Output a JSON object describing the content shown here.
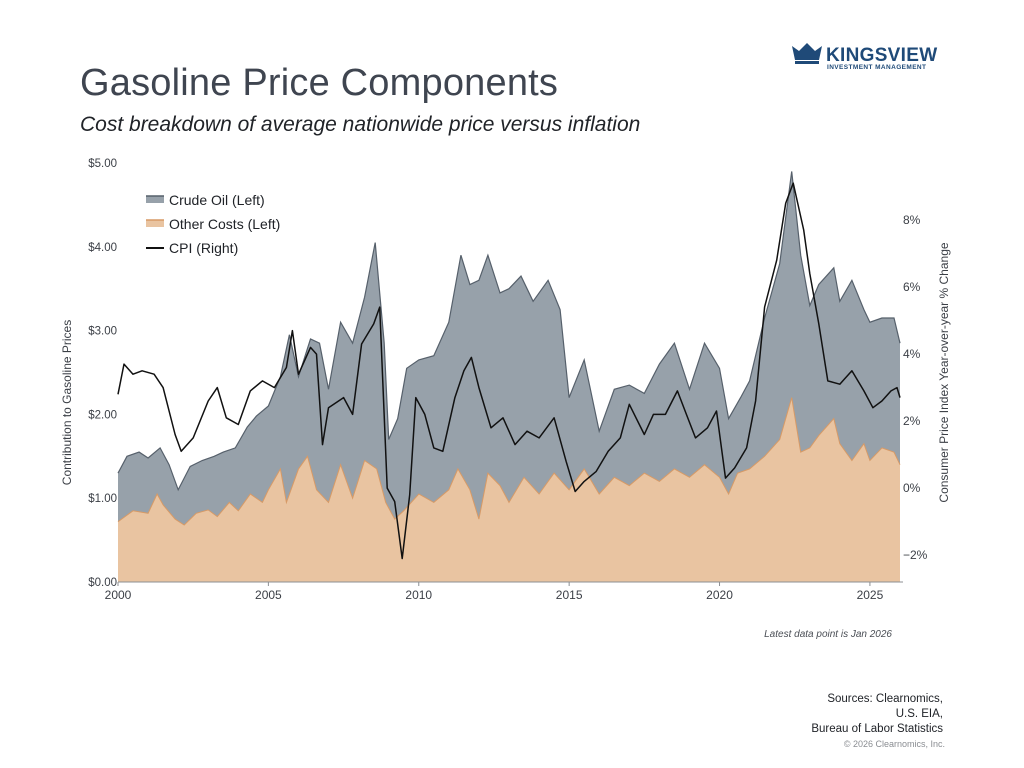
{
  "header": {
    "title": "Gasoline Price Components",
    "subtitle": "Cost breakdown of average nationwide price versus inflation"
  },
  "logo": {
    "name": "KINGSVIEW",
    "tagline": "INVESTMENT MANAGEMENT",
    "color": "#1f4a78"
  },
  "footer": {
    "latest_note": "Latest data point is Jan 2026",
    "sources_lines": [
      "Sources: Clearnomics,",
      "U.S. EIA,",
      "Bureau of Labor Statistics"
    ],
    "copyright": "© 2026 Clearnomics, Inc."
  },
  "colors": {
    "crude_fill": "#97a1aa",
    "crude_line": "#56606b",
    "other_fill": "#e9c4a1",
    "other_line": "#d79a66",
    "cpi_line": "#111111",
    "axis": "#8c8f93",
    "text": "#3b3f46"
  },
  "chart_data": {
    "type": "area",
    "x_type": "year",
    "xlim": [
      2000,
      2026.1
    ],
    "x_ticks": [
      2000,
      2005,
      2010,
      2015,
      2020,
      2025
    ],
    "x_tick_labels": [
      "2000",
      "2005",
      "2010",
      "2015",
      "2020",
      "2025"
    ],
    "left_axis": {
      "label": "Contribution to Gasoline Prices",
      "ylim": [
        0,
        5
      ],
      "ticks": [
        0,
        1,
        2,
        3,
        4,
        5
      ],
      "tick_labels": [
        "$0.00",
        "$1.00",
        "$2.00",
        "$3.00",
        "$4.00",
        "$5.00"
      ]
    },
    "right_axis": {
      "label": "Consumer Price Index Year-over-year % Change",
      "ylim": [
        -2.8,
        9.7
      ],
      "ticks": [
        -2,
        0,
        2,
        4,
        6,
        8
      ],
      "tick_labels": [
        "−2%",
        "0%",
        "2%",
        "4%",
        "6%",
        "8%"
      ]
    },
    "legend": {
      "position": "top-left",
      "entries": [
        "Crude Oil (Left)",
        "Other Costs (Left)",
        "CPI (Right)"
      ]
    },
    "grid": false,
    "series": [
      {
        "name": "Other Costs (Left)",
        "type": "area",
        "axis": "left",
        "stack_position": "bottom",
        "points": [
          [
            2000.0,
            0.72
          ],
          [
            2000.5,
            0.85
          ],
          [
            2001.0,
            0.82
          ],
          [
            2001.3,
            1.05
          ],
          [
            2001.5,
            0.92
          ],
          [
            2001.9,
            0.75
          ],
          [
            2002.2,
            0.68
          ],
          [
            2002.6,
            0.82
          ],
          [
            2003.0,
            0.86
          ],
          [
            2003.3,
            0.78
          ],
          [
            2003.7,
            0.95
          ],
          [
            2004.0,
            0.85
          ],
          [
            2004.4,
            1.05
          ],
          [
            2004.8,
            0.95
          ],
          [
            2005.0,
            1.1
          ],
          [
            2005.4,
            1.35
          ],
          [
            2005.6,
            0.95
          ],
          [
            2006.0,
            1.35
          ],
          [
            2006.3,
            1.5
          ],
          [
            2006.6,
            1.1
          ],
          [
            2007.0,
            0.95
          ],
          [
            2007.4,
            1.4
          ],
          [
            2007.8,
            1.0
          ],
          [
            2008.2,
            1.45
          ],
          [
            2008.6,
            1.35
          ],
          [
            2008.9,
            0.95
          ],
          [
            2009.2,
            0.75
          ],
          [
            2009.5,
            0.85
          ],
          [
            2010.0,
            1.05
          ],
          [
            2010.5,
            0.95
          ],
          [
            2011.0,
            1.1
          ],
          [
            2011.3,
            1.35
          ],
          [
            2011.7,
            1.1
          ],
          [
            2012.0,
            0.75
          ],
          [
            2012.3,
            1.3
          ],
          [
            2012.7,
            1.15
          ],
          [
            2013.0,
            0.95
          ],
          [
            2013.5,
            1.25
          ],
          [
            2014.0,
            1.05
          ],
          [
            2014.5,
            1.3
          ],
          [
            2015.0,
            1.1
          ],
          [
            2015.5,
            1.35
          ],
          [
            2016.0,
            1.05
          ],
          [
            2016.5,
            1.25
          ],
          [
            2017.0,
            1.15
          ],
          [
            2017.5,
            1.3
          ],
          [
            2018.0,
            1.2
          ],
          [
            2018.5,
            1.35
          ],
          [
            2019.0,
            1.25
          ],
          [
            2019.5,
            1.4
          ],
          [
            2020.0,
            1.25
          ],
          [
            2020.3,
            1.05
          ],
          [
            2020.6,
            1.3
          ],
          [
            2021.0,
            1.35
          ],
          [
            2021.5,
            1.5
          ],
          [
            2022.0,
            1.7
          ],
          [
            2022.4,
            2.2
          ],
          [
            2022.7,
            1.55
          ],
          [
            2023.0,
            1.6
          ],
          [
            2023.3,
            1.75
          ],
          [
            2023.8,
            1.95
          ],
          [
            2024.0,
            1.65
          ],
          [
            2024.4,
            1.45
          ],
          [
            2024.8,
            1.65
          ],
          [
            2025.0,
            1.45
          ],
          [
            2025.4,
            1.6
          ],
          [
            2025.8,
            1.55
          ],
          [
            2026.0,
            1.4
          ]
        ]
      },
      {
        "name": "Crude Oil (Left)",
        "type": "area",
        "axis": "left",
        "stack_position": "top",
        "total_points": [
          [
            2000.0,
            1.3
          ],
          [
            2000.3,
            1.5
          ],
          [
            2000.7,
            1.55
          ],
          [
            2001.0,
            1.48
          ],
          [
            2001.4,
            1.6
          ],
          [
            2001.7,
            1.4
          ],
          [
            2002.0,
            1.1
          ],
          [
            2002.4,
            1.38
          ],
          [
            2002.8,
            1.45
          ],
          [
            2003.2,
            1.5
          ],
          [
            2003.5,
            1.55
          ],
          [
            2003.9,
            1.6
          ],
          [
            2004.3,
            1.85
          ],
          [
            2004.6,
            1.98
          ],
          [
            2005.0,
            2.1
          ],
          [
            2005.4,
            2.45
          ],
          [
            2005.7,
            2.95
          ],
          [
            2006.0,
            2.45
          ],
          [
            2006.4,
            2.9
          ],
          [
            2006.7,
            2.85
          ],
          [
            2007.0,
            2.3
          ],
          [
            2007.4,
            3.1
          ],
          [
            2007.8,
            2.85
          ],
          [
            2008.2,
            3.4
          ],
          [
            2008.55,
            4.05
          ],
          [
            2008.85,
            2.85
          ],
          [
            2009.0,
            1.7
          ],
          [
            2009.3,
            1.95
          ],
          [
            2009.6,
            2.55
          ],
          [
            2010.0,
            2.65
          ],
          [
            2010.5,
            2.7
          ],
          [
            2011.0,
            3.1
          ],
          [
            2011.4,
            3.9
          ],
          [
            2011.7,
            3.55
          ],
          [
            2012.0,
            3.6
          ],
          [
            2012.3,
            3.9
          ],
          [
            2012.7,
            3.45
          ],
          [
            2013.0,
            3.5
          ],
          [
            2013.4,
            3.65
          ],
          [
            2013.8,
            3.35
          ],
          [
            2014.3,
            3.6
          ],
          [
            2014.7,
            3.25
          ],
          [
            2015.0,
            2.2
          ],
          [
            2015.5,
            2.65
          ],
          [
            2016.0,
            1.8
          ],
          [
            2016.5,
            2.3
          ],
          [
            2017.0,
            2.35
          ],
          [
            2017.5,
            2.25
          ],
          [
            2018.0,
            2.6
          ],
          [
            2018.5,
            2.85
          ],
          [
            2019.0,
            2.3
          ],
          [
            2019.5,
            2.85
          ],
          [
            2020.0,
            2.55
          ],
          [
            2020.3,
            1.95
          ],
          [
            2020.7,
            2.2
          ],
          [
            2021.0,
            2.4
          ],
          [
            2021.5,
            3.15
          ],
          [
            2022.0,
            3.8
          ],
          [
            2022.4,
            4.9
          ],
          [
            2022.7,
            3.9
          ],
          [
            2023.0,
            3.3
          ],
          [
            2023.3,
            3.55
          ],
          [
            2023.8,
            3.75
          ],
          [
            2024.0,
            3.35
          ],
          [
            2024.4,
            3.6
          ],
          [
            2024.8,
            3.25
          ],
          [
            2025.0,
            3.1
          ],
          [
            2025.4,
            3.15
          ],
          [
            2025.8,
            3.15
          ],
          [
            2026.0,
            2.85
          ]
        ]
      },
      {
        "name": "CPI (Right)",
        "type": "line",
        "axis": "right",
        "points": [
          [
            2000.0,
            2.8
          ],
          [
            2000.2,
            3.7
          ],
          [
            2000.5,
            3.4
          ],
          [
            2000.8,
            3.5
          ],
          [
            2001.2,
            3.4
          ],
          [
            2001.5,
            3.0
          ],
          [
            2001.9,
            1.6
          ],
          [
            2002.1,
            1.1
          ],
          [
            2002.5,
            1.5
          ],
          [
            2003.0,
            2.6
          ],
          [
            2003.3,
            3.0
          ],
          [
            2003.6,
            2.1
          ],
          [
            2004.0,
            1.9
          ],
          [
            2004.4,
            2.9
          ],
          [
            2004.8,
            3.2
          ],
          [
            2005.2,
            3.0
          ],
          [
            2005.6,
            3.6
          ],
          [
            2005.8,
            4.7
          ],
          [
            2006.0,
            3.4
          ],
          [
            2006.4,
            4.2
          ],
          [
            2006.6,
            4.0
          ],
          [
            2006.8,
            1.3
          ],
          [
            2007.0,
            2.4
          ],
          [
            2007.5,
            2.7
          ],
          [
            2007.8,
            2.2
          ],
          [
            2008.1,
            4.3
          ],
          [
            2008.5,
            4.9
          ],
          [
            2008.7,
            5.4
          ],
          [
            2008.95,
            0.0
          ],
          [
            2009.2,
            -0.4
          ],
          [
            2009.45,
            -2.1
          ],
          [
            2009.7,
            -0.2
          ],
          [
            2009.9,
            2.7
          ],
          [
            2010.2,
            2.2
          ],
          [
            2010.5,
            1.2
          ],
          [
            2010.8,
            1.1
          ],
          [
            2011.2,
            2.7
          ],
          [
            2011.5,
            3.5
          ],
          [
            2011.75,
            3.9
          ],
          [
            2012.0,
            3.0
          ],
          [
            2012.4,
            1.8
          ],
          [
            2012.8,
            2.1
          ],
          [
            2013.2,
            1.3
          ],
          [
            2013.6,
            1.7
          ],
          [
            2014.0,
            1.5
          ],
          [
            2014.5,
            2.1
          ],
          [
            2014.9,
            0.8
          ],
          [
            2015.2,
            -0.1
          ],
          [
            2015.5,
            0.2
          ],
          [
            2015.9,
            0.5
          ],
          [
            2016.3,
            1.1
          ],
          [
            2016.7,
            1.5
          ],
          [
            2017.0,
            2.5
          ],
          [
            2017.5,
            1.6
          ],
          [
            2017.8,
            2.2
          ],
          [
            2018.2,
            2.2
          ],
          [
            2018.6,
            2.9
          ],
          [
            2018.9,
            2.2
          ],
          [
            2019.2,
            1.5
          ],
          [
            2019.6,
            1.8
          ],
          [
            2019.9,
            2.3
          ],
          [
            2020.2,
            0.3
          ],
          [
            2020.5,
            0.6
          ],
          [
            2020.9,
            1.2
          ],
          [
            2021.2,
            2.6
          ],
          [
            2021.5,
            5.4
          ],
          [
            2021.9,
            6.8
          ],
          [
            2022.2,
            8.5
          ],
          [
            2022.45,
            9.1
          ],
          [
            2022.8,
            7.7
          ],
          [
            2023.0,
            6.4
          ],
          [
            2023.3,
            4.9
          ],
          [
            2023.6,
            3.2
          ],
          [
            2024.0,
            3.1
          ],
          [
            2024.4,
            3.5
          ],
          [
            2024.8,
            2.9
          ],
          [
            2025.1,
            2.4
          ],
          [
            2025.4,
            2.6
          ],
          [
            2025.7,
            2.9
          ],
          [
            2025.9,
            3.0
          ],
          [
            2026.0,
            2.7
          ]
        ]
      }
    ]
  }
}
